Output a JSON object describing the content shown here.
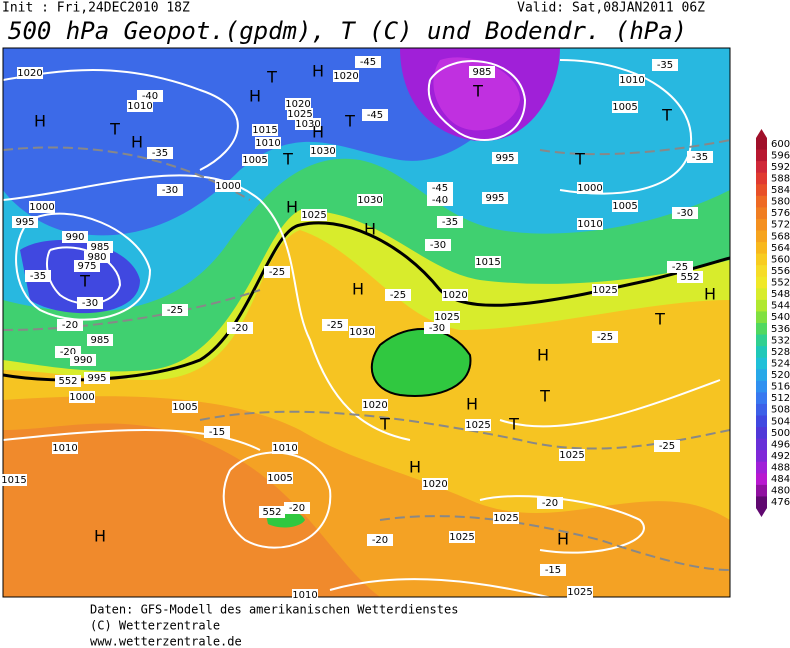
{
  "header": {
    "init": "Init : Fri,24DEC2010 18Z",
    "valid": "Valid: Sat,08JAN2011 06Z",
    "title": "500 hPa Geopot.(gpdm), T (C) und Bodendr. (hPa)"
  },
  "colorbar": {
    "levels": [
      600,
      596,
      592,
      588,
      584,
      580,
      576,
      572,
      568,
      564,
      560,
      556,
      552,
      548,
      544,
      540,
      536,
      532,
      528,
      524,
      520,
      516,
      512,
      508,
      504,
      500,
      496,
      492,
      488,
      484,
      480,
      476
    ],
    "colors": [
      "#a0102a",
      "#b81830",
      "#d02838",
      "#e03a30",
      "#e85028",
      "#ee6a24",
      "#f07e22",
      "#f49020",
      "#f6a41e",
      "#f8b81c",
      "#f8cc20",
      "#f6dc28",
      "#f0e828",
      "#d8ec2c",
      "#b0e830",
      "#80e040",
      "#50d860",
      "#30d090",
      "#20c8b8",
      "#20c0d8",
      "#28a8e8",
      "#3090f0",
      "#3878f0",
      "#3c60e8",
      "#4048e0",
      "#5038d8",
      "#6830d8",
      "#8028d8",
      "#a020d8",
      "#b818d0",
      "#9010a0",
      "#600870"
    ]
  },
  "map": {
    "labels": [
      "1020",
      "H",
      "T",
      "H",
      "1010",
      "-40",
      "-35",
      "-30",
      "1005",
      "1000",
      "1015",
      "1010",
      "T",
      "H",
      "T",
      "H",
      "1020",
      "1020",
      "1025",
      "1030",
      "H",
      "1030",
      "T",
      "-45",
      "-45",
      "T",
      "985",
      "995",
      "T",
      "1000",
      "1005",
      "1010",
      "-35",
      "-30",
      "T",
      "1005",
      "1010",
      "-35",
      "1000",
      "995",
      "990",
      "985",
      "980",
      "975",
      "T",
      "-35",
      "-30",
      "-25",
      "-20",
      "-20",
      "-20",
      "985",
      "990",
      "995",
      "1000",
      "552",
      "1005",
      "1010",
      "1015",
      "H",
      "1010",
      "1005",
      "552",
      "-20",
      "-15",
      "-20",
      "H",
      "1025",
      "1030",
      "H",
      "-25",
      "H",
      "-25",
      "1030",
      "-25",
      "-30",
      "-35",
      "-40",
      "-45",
      "995",
      "1015",
      "1020",
      "1025",
      "-30",
      "552",
      "-25",
      "1025",
      "H",
      "T",
      "-25",
      "H",
      "T",
      "1020",
      "T",
      "H",
      "1025",
      "T",
      "1025",
      "-25",
      "H",
      "1020",
      "-20",
      "1025",
      "H",
      "1025",
      "-15",
      "1025",
      "1010"
    ]
  },
  "footer": {
    "lines": [
      "Daten: GFS-Modell des amerikanischen Wetterdienstes",
      "(C) Wetterzentrale",
      "www.wetterzentrale.de"
    ]
  }
}
